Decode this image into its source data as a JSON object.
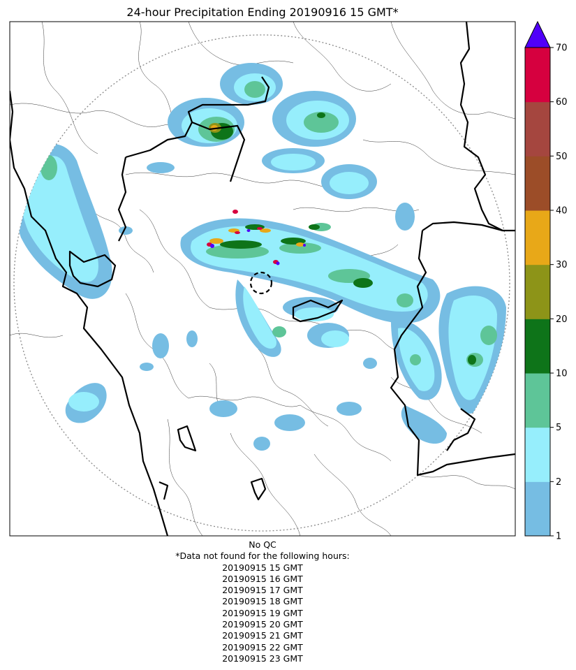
{
  "title": "24-hour Precipitation Ending 20190916 15 GMT*",
  "footer": {
    "qc": "No QC",
    "missing_note": "*Data not found for the following hours:",
    "missing_hours": [
      "20190915 15 GMT",
      "20190915 16 GMT",
      "20190915 17 GMT",
      "20190915 18 GMT",
      "20190915 19 GMT",
      "20190915 20 GMT",
      "20190915 21 GMT",
      "20190915 22 GMT",
      "20190915 23 GMT"
    ]
  },
  "colorbar": {
    "bounds": [
      "1",
      "2",
      "5",
      "10",
      "20",
      "30",
      "40",
      "50",
      "60",
      "70"
    ],
    "colors": [
      "#76bde3",
      "#96eefc",
      "#5ec598",
      "#0e7419",
      "#8d9418",
      "#e8a818",
      "#9c4d28",
      "#a5463f",
      "#d6003f"
    ],
    "extend_color": "#5000f8"
  },
  "palette": {
    "light_blue": "#76bde3",
    "cyan": "#96eefc",
    "green": "#5ec598",
    "dark_green": "#0e7419",
    "olive": "#8d9418",
    "orange": "#e8a818",
    "red": "#d6003f",
    "purple": "#5000f8"
  }
}
